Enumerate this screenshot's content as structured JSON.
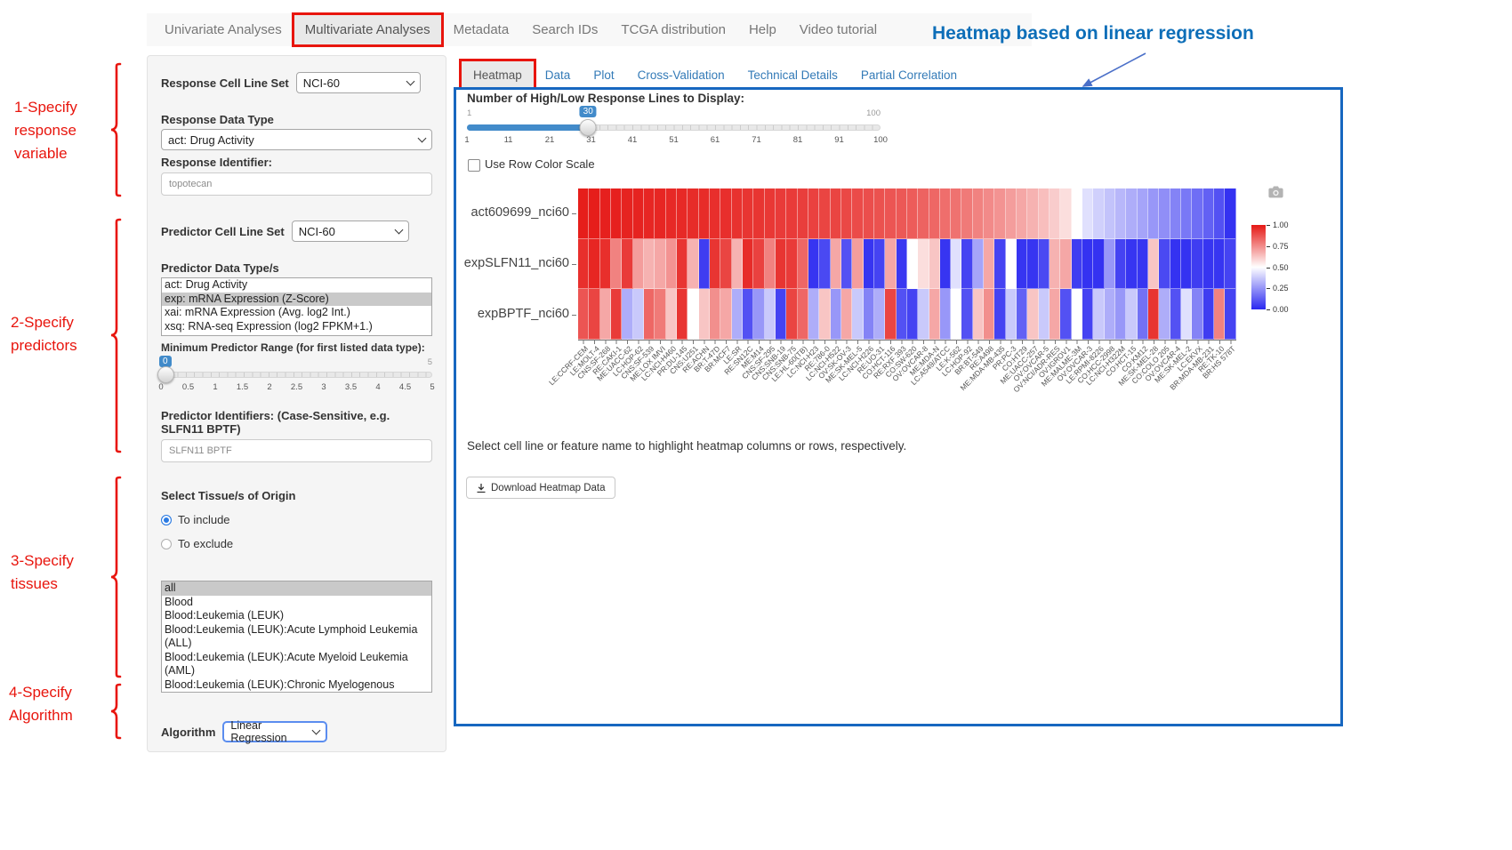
{
  "nav": {
    "items": [
      {
        "label": "Univariate Analyses",
        "active": false
      },
      {
        "label": "Multivariate Analyses",
        "active": true
      },
      {
        "label": "Metadata",
        "active": false
      },
      {
        "label": "Search IDs",
        "active": false
      },
      {
        "label": "TCGA distribution",
        "active": false
      },
      {
        "label": "Help",
        "active": false
      },
      {
        "label": "Video tutorial",
        "active": false
      }
    ]
  },
  "annotation": {
    "title": "Heatmap based on linear regression",
    "steps": [
      "1-Specify\nresponse\nvariable",
      "2-Specify\npredictors",
      "3-Specify\ntissues",
      "4-Specify\nAlgorithm"
    ]
  },
  "sidebar": {
    "response_cell_line_set_label": "Response Cell Line Set",
    "response_cell_line_set_value": "NCI-60",
    "response_data_type_label": "Response Data Type",
    "response_data_type_value": "act: Drug Activity",
    "response_identifier_label": "Response Identifier:",
    "response_identifier_value": "topotecan",
    "predictor_cell_line_set_label": "Predictor Cell Line Set",
    "predictor_cell_line_set_value": "NCI-60",
    "predictor_data_types_label": "Predictor Data Type/s",
    "predictor_data_types": [
      {
        "label": "act: Drug Activity",
        "selected": false
      },
      {
        "label": "exp: mRNA Expression (Z-Score)",
        "selected": true
      },
      {
        "label": "xai: mRNA Expression (Avg. log2 Int.)",
        "selected": false
      },
      {
        "label": "xsq: RNA-seq Expression (log2 FPKM+1.)",
        "selected": false
      }
    ],
    "min_predictor_range_label": "Minimum Predictor Range (for first listed data type):",
    "min_range_slider": {
      "value": "0",
      "max_label": "5",
      "ticks": [
        "0",
        "0.5",
        "1",
        "1.5",
        "2",
        "2.5",
        "3",
        "3.5",
        "4",
        "4.5",
        "5"
      ]
    },
    "predictor_identifiers_label": "Predictor Identifiers: (Case-Sensitive, e.g. SLFN11 BPTF)",
    "predictor_identifiers_value": "SLFN11 BPTF",
    "tissue_label": "Select Tissue/s of Origin",
    "tissue_radios": [
      {
        "label": "To include",
        "selected": true
      },
      {
        "label": "To exclude",
        "selected": false
      }
    ],
    "tissue_options": [
      {
        "label": "all",
        "selected": true
      },
      {
        "label": "Blood",
        "selected": false
      },
      {
        "label": "Blood:Leukemia (LEUK)",
        "selected": false
      },
      {
        "label": "Blood:Leukemia (LEUK):Acute Lymphoid Leukemia (ALL)",
        "selected": false
      },
      {
        "label": "Blood:Leukemia (LEUK):Acute Myeloid Leukemia (AML)",
        "selected": false
      },
      {
        "label": "Blood:Leukemia (LEUK):Chronic Myelogenous Leukemia (CML)",
        "selected": false
      }
    ],
    "algorithm_label": "Algorithm",
    "algorithm_value": "Linear Regression"
  },
  "main": {
    "tabs": [
      {
        "label": "Heatmap",
        "active": true
      },
      {
        "label": "Data",
        "active": false
      },
      {
        "label": "Plot",
        "active": false
      },
      {
        "label": "Cross-Validation",
        "active": false
      },
      {
        "label": "Technical Details",
        "active": false
      },
      {
        "label": "Partial Correlation",
        "active": false
      }
    ],
    "lines_slider": {
      "label": "Number of High/Low Response Lines to Display:",
      "value": "30",
      "min_label": "1",
      "max_label": "100",
      "ticks": [
        "1",
        "11",
        "21",
        "31",
        "41",
        "51",
        "61",
        "71",
        "81",
        "91",
        "100"
      ]
    },
    "row_color_checkbox": {
      "label": "Use Row Color Scale",
      "checked": false
    },
    "note": "Select cell line or feature name to highlight heatmap columns or rows, respectively.",
    "download_button_label": "Download Heatmap Data"
  },
  "chart_data": {
    "type": "heatmap",
    "rows": [
      "act609699_nci60",
      "expSLFN11_nci60",
      "expBPTF_nci60"
    ],
    "columns": [
      "LE:CCRF-CEM",
      "LE:MOLT-4",
      "CNS:SF-268",
      "RE:CAKI-1",
      "ME:UACC-62",
      "LC:HOP-62",
      "CNS:SF-539",
      "ME:LOX IMVI",
      "LC:NCI-H460",
      "PR:DU-145",
      "CNS:U251",
      "RE:ACHN",
      "BR:T-47D",
      "BR:MCF7",
      "LE:SR",
      "RE:SN12C",
      "ME:M14",
      "CNS:SF-295",
      "CNS:SNB-19",
      "CNS:SNB-75",
      "LE:HL-60(TB)",
      "LC:NCI-H23",
      "RE:786-0",
      "LC:NCI-H522",
      "OV:SK-OV-3",
      "ME:SK-MEL-5",
      "LC:NCI-H226",
      "RE:UO-31",
      "CO:HCT-116",
      "RE:RXF 393",
      "CO:SW-620",
      "OV:OVCAR-8",
      "ME:MDA-N",
      "LC:A549/ATCC",
      "LE:K-562",
      "LC:HOP-92",
      "BR:BT-549",
      "RE:A498",
      "ME:MDA-MB-435",
      "PR:PC-3",
      "CO:HT29",
      "ME:UACC-257",
      "OV:OVCAR-5",
      "OV:NCI/ADR-RES",
      "OV:IGROV1",
      "ME:MALME-3M",
      "OV:OVCAR-3",
      "LE:RPMI-8226",
      "CO:HCC-2998",
      "LC:NCI-H322M",
      "CO:HCT-15",
      "CO:KM12",
      "ME:SK-MEL-28",
      "CO:COLO 205",
      "OV:OVCAR-4",
      "ME:SK-MEL-2",
      "LC:EKVX",
      "BR:MDA-MB-231",
      "RE:TK-10",
      "BR:HS 578T"
    ],
    "values": [
      [
        0.98,
        0.98,
        0.97,
        0.97,
        0.96,
        0.96,
        0.95,
        0.95,
        0.94,
        0.94,
        0.93,
        0.93,
        0.92,
        0.92,
        0.91,
        0.9,
        0.9,
        0.89,
        0.88,
        0.88,
        0.87,
        0.86,
        0.85,
        0.85,
        0.84,
        0.83,
        0.82,
        0.81,
        0.8,
        0.79,
        0.78,
        0.76,
        0.75,
        0.73,
        0.72,
        0.7,
        0.68,
        0.66,
        0.64,
        0.62,
        0.6,
        0.58,
        0.56,
        0.54,
        0.52,
        0.5,
        0.48,
        0.46,
        0.44,
        0.42,
        0.4,
        0.38,
        0.35,
        0.33,
        0.3,
        0.27,
        0.24,
        0.2,
        0.15,
        0.04
      ],
      [
        0.92,
        0.95,
        0.92,
        0.68,
        0.88,
        0.62,
        0.58,
        0.6,
        0.64,
        0.9,
        0.58,
        0.08,
        0.9,
        0.85,
        0.58,
        0.93,
        0.86,
        0.68,
        0.9,
        0.88,
        0.75,
        0.05,
        0.12,
        0.6,
        0.15,
        0.62,
        0.05,
        0.1,
        0.6,
        0.06,
        0.5,
        0.52,
        0.55,
        0.05,
        0.48,
        0.1,
        0.38,
        0.6,
        0.1,
        0.5,
        0.05,
        0.05,
        0.12,
        0.58,
        0.6,
        0.08,
        0.04,
        0.04,
        0.35,
        0.1,
        0.05,
        0.05,
        0.55,
        0.12,
        0.04,
        0.04,
        0.08,
        0.05,
        0.05,
        0.1
      ],
      [
        0.8,
        0.85,
        0.6,
        0.88,
        0.4,
        0.45,
        0.75,
        0.7,
        0.55,
        0.9,
        0.5,
        0.55,
        0.65,
        0.6,
        0.4,
        0.15,
        0.35,
        0.45,
        0.1,
        0.85,
        0.75,
        0.4,
        0.55,
        0.35,
        0.6,
        0.45,
        0.3,
        0.4,
        0.85,
        0.15,
        0.1,
        0.45,
        0.6,
        0.35,
        0.5,
        0.15,
        0.55,
        0.65,
        0.1,
        0.45,
        0.2,
        0.55,
        0.45,
        0.6,
        0.15,
        0.5,
        0.1,
        0.45,
        0.4,
        0.35,
        0.45,
        0.25,
        0.9,
        0.4,
        0.15,
        0.48,
        0.3,
        0.08,
        0.68,
        0.1
      ]
    ],
    "colorscale": {
      "high": "#e51815",
      "mid": "#ffffff",
      "low": "#2a28f0",
      "tick_labels": [
        "1.00",
        "0.75",
        "0.50",
        "0.25",
        "0.00"
      ]
    }
  }
}
